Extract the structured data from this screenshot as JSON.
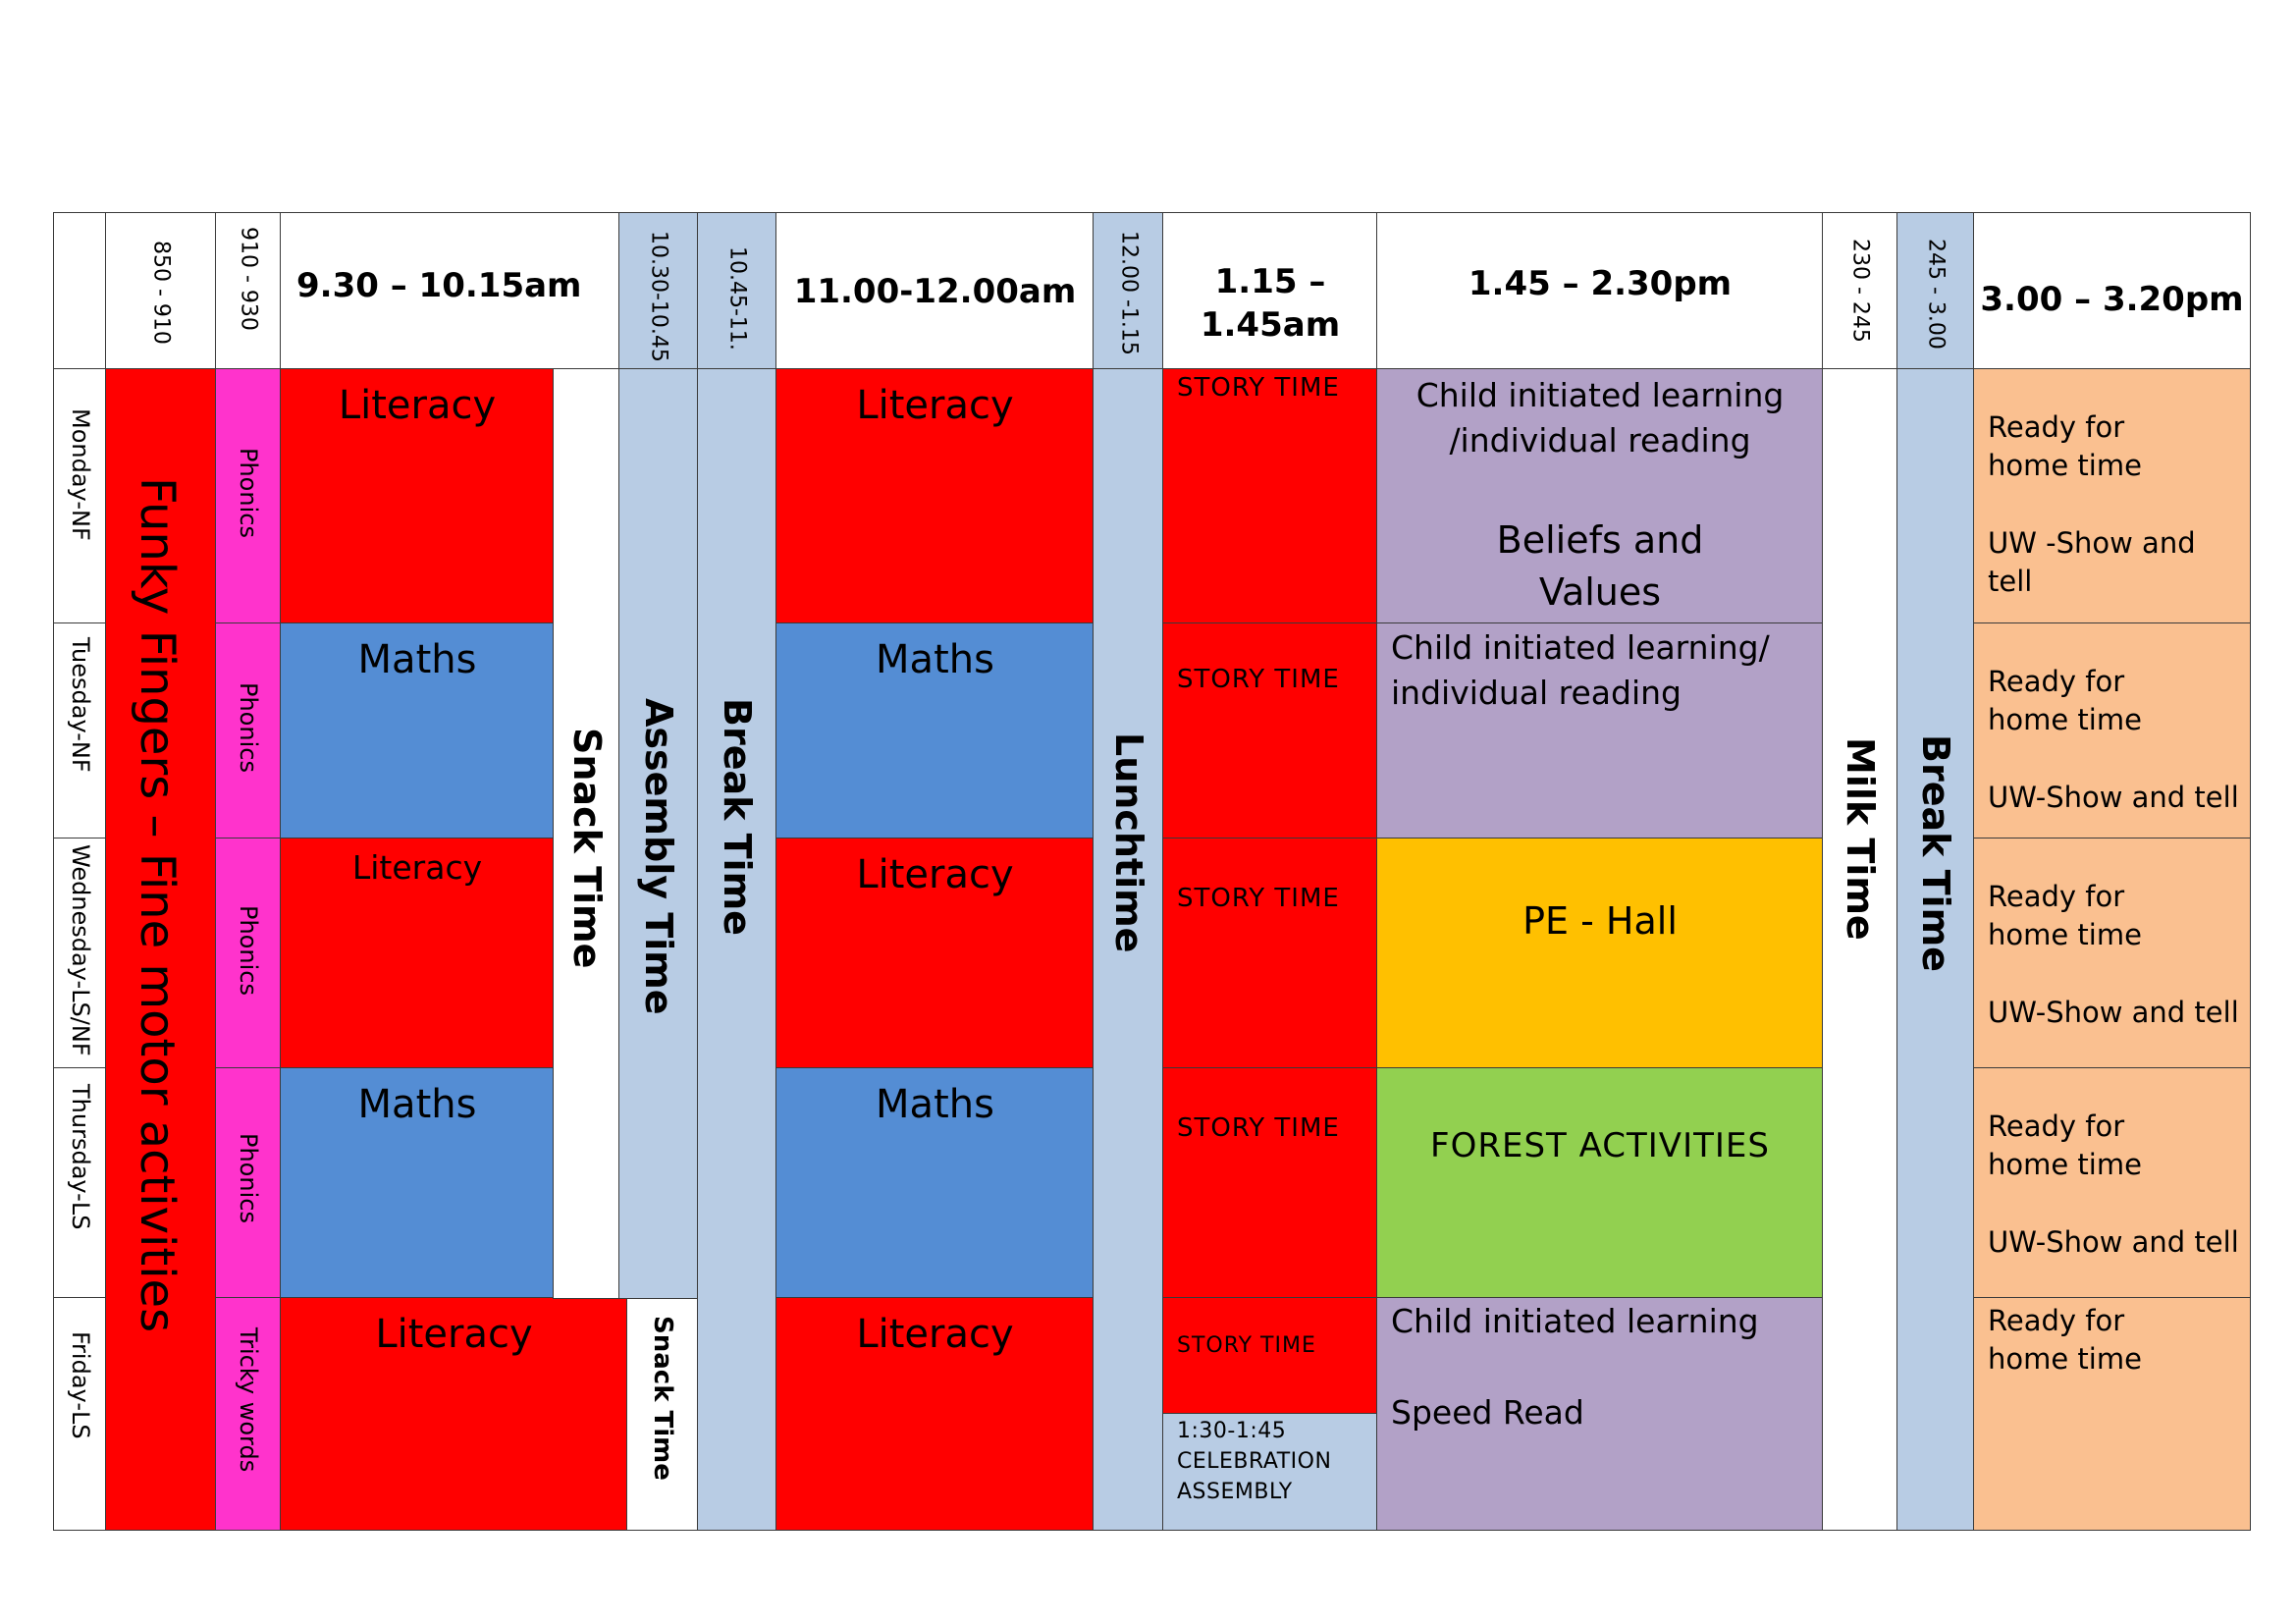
{
  "header": {
    "t0850": "850 - 910",
    "t0910": "910 - 930",
    "t0930": "9.30 – 10.15am",
    "t1030": "10.30-10.45",
    "t1045": "10.45-11.",
    "t1100": "11.00-12.00am",
    "t1200": "12.00 -1.15",
    "t1315": "1.15 –\n1.45am",
    "t1345": "1.45 – 2.30pm",
    "t1430": "230 - 245",
    "t1445": "245 - 3.00",
    "t1500": "3.00 – 3.20pm"
  },
  "days": [
    "Monday-NF",
    "Tuesday-NF",
    "Wednesday-LS/NF",
    "Thursday-LS",
    "Friday-LS"
  ],
  "funky_fingers": "Funky Fingers – Fine motor activities",
  "phonics": [
    "Phonics",
    "Phonics",
    "Phonics",
    "Phonics",
    "Tricky words"
  ],
  "morning1": [
    "Literacy",
    "Maths",
    "Literacy",
    "Maths",
    "Literacy"
  ],
  "snack_time": "Snack Time",
  "snack_time_friday": "Snack Time",
  "assembly_time": "Assembly Time",
  "break_time": "Break Time",
  "morning2": [
    "Literacy",
    "Maths",
    "Literacy",
    "Maths",
    "Literacy"
  ],
  "lunchtime": "Lunchtime",
  "story_time": [
    "STORY TIME",
    "STORY TIME",
    "STORY TIME",
    "STORY TIME",
    "STORY TIME"
  ],
  "celebration": "1:30-1:45\nCELEBRATION\nASSEMBLY",
  "afternoon": {
    "mon_1": "Child initiated learning\n/individual reading",
    "mon_2": "Beliefs and\nValues",
    "tue": "Child initiated learning/\nindividual reading",
    "wed": "PE - Hall",
    "thu": "FOREST ACTIVITIES",
    "fri_1": "Child initiated learning",
    "fri_2": "Speed Read"
  },
  "milk_time": "Milk Time",
  "break_time_pm": "Break Time",
  "home": {
    "ready": "Ready for\nhome time",
    "mon_uw": "UW -Show and tell",
    "uw": "UW-Show and tell"
  },
  "colors": {
    "literacy": "#ff0000",
    "maths": "#548dd4",
    "phonics": "#ff33cc",
    "break": "#b8cce4",
    "child_initiated": "#b2a1c7",
    "pe": "#ffc000",
    "forest": "#92d050",
    "home_time": "#fac090"
  }
}
